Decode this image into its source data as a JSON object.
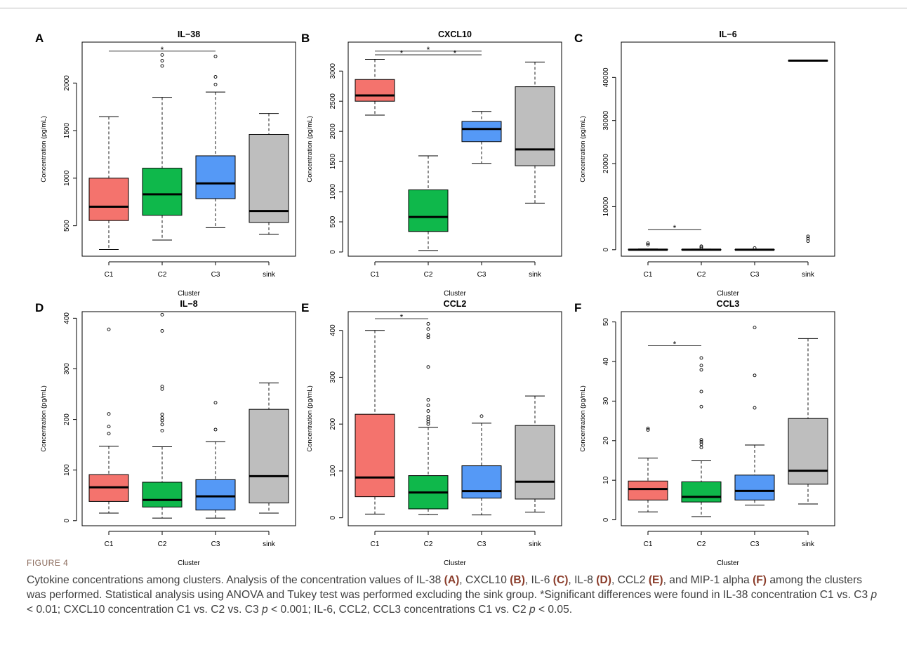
{
  "figure_label": "FIGURE 4",
  "caption": {
    "p1": "Cytokine concentrations among clusters. Analysis of the concentration values of IL-38 ",
    "b1": "(A)",
    "p2": ", CXCL10 ",
    "b2": "(B)",
    "p3": ", IL-6 ",
    "b3": "(C)",
    "p4": ", IL-8 ",
    "b4": "(D)",
    "p5": ", CCL2 ",
    "b5": "(E)",
    "p6": ", and MIP-1 alpha ",
    "b6": "(F)",
    "p7": " among the clusters was performed. Statistical analysis using ANOVA and Tukey test was performed excluding the sink group. *Significant differences were found in IL-38 concentration C1 vs. C3 ",
    "p8": " < 0.01; CXCL10 concentration C1 vs. C2 vs. C3 ",
    "p9": " < 0.001; IL-6, CCL2, CCL3 concentrations C1 vs. C2 ",
    "p10": " < 0.05.",
    "pvar": "p"
  },
  "colors": {
    "C1": "#f4736d",
    "C2": "#0fb84b",
    "C3": "#5599f6",
    "sink": "#bebebe"
  },
  "chart_data": [
    {
      "type": "box",
      "panel": "A",
      "title": "IL−38",
      "xlabel": "Cluster",
      "ylabel": "Concentration (pg/mL)",
      "categories": [
        "C1",
        "C2",
        "C3",
        "sink"
      ],
      "ylim": [
        180,
        2430
      ],
      "yticks": [
        500,
        1000,
        1500,
        2000
      ],
      "ytick_labels": [
        "500",
        "1000",
        "1500",
        "2000"
      ],
      "boxes": [
        {
          "low": 250,
          "q1": 555,
          "median": 700,
          "q3": 1000,
          "high": 1645,
          "outliers": []
        },
        {
          "low": 350,
          "q1": 610,
          "median": 830,
          "q3": 1105,
          "high": 1850,
          "outliers": [
            2180,
            2235,
            2295
          ]
        },
        {
          "low": 480,
          "q1": 785,
          "median": 945,
          "q3": 1235,
          "high": 1905,
          "outliers": [
            1985,
            2065,
            2280
          ]
        },
        {
          "low": 410,
          "q1": 535,
          "median": 655,
          "q3": 1460,
          "high": 1680,
          "outliers": []
        }
      ],
      "significance": [
        {
          "from": 0,
          "to": 2,
          "y": 2335,
          "label": "*"
        }
      ]
    },
    {
      "type": "box",
      "panel": "B",
      "title": "CXCL10",
      "xlabel": "Cluster",
      "ylabel": "Concentration (pg/mL)",
      "categories": [
        "C1",
        "C2",
        "C3",
        "sink"
      ],
      "ylim": [
        -70,
        3480
      ],
      "yticks": [
        0,
        500,
        1000,
        1500,
        2000,
        2500,
        3000
      ],
      "ytick_labels": [
        "0",
        "500",
        "1000",
        "1500",
        "2000",
        "2500",
        "3000"
      ],
      "boxes": [
        {
          "low": 2270,
          "q1": 2500,
          "median": 2595,
          "q3": 2860,
          "high": 3195,
          "outliers": []
        },
        {
          "low": 25,
          "q1": 340,
          "median": 580,
          "q3": 1030,
          "high": 1595,
          "outliers": []
        },
        {
          "low": 1470,
          "q1": 1830,
          "median": 2040,
          "q3": 2165,
          "high": 2330,
          "outliers": []
        },
        {
          "low": 810,
          "q1": 1430,
          "median": 1700,
          "q3": 2740,
          "high": 3150,
          "outliers": []
        }
      ],
      "significance": [
        {
          "from": 0,
          "to": 1,
          "y": 3270,
          "label": "*"
        },
        {
          "from": 0,
          "to": 2,
          "y": 3330,
          "label": "*"
        },
        {
          "from": 1,
          "to": 2,
          "y": 3270,
          "label": "*"
        }
      ]
    },
    {
      "type": "box",
      "panel": "C",
      "title": "IL−6",
      "xlabel": "Cluster",
      "ylabel": "Concentration (pg/mL)",
      "categories": [
        "C1",
        "C2",
        "C3",
        "sink"
      ],
      "ylim": [
        -1500,
        48200
      ],
      "yticks": [
        0,
        10000,
        20000,
        30000,
        40000
      ],
      "ytick_labels": [
        "0",
        "10000",
        "20000",
        "30000",
        "40000"
      ],
      "boxes": [
        {
          "low": 0,
          "q1": 0,
          "median": 0,
          "q3": 100,
          "high": 200,
          "outliers": [
            1200,
            1500
          ]
        },
        {
          "low": 0,
          "q1": 0,
          "median": 0,
          "q3": 50,
          "high": 150,
          "outliers": [
            500,
            800
          ]
        },
        {
          "low": 0,
          "q1": 0,
          "median": 0,
          "q3": 50,
          "high": 120,
          "outliers": [
            400
          ]
        },
        {
          "low": 43900,
          "q1": 43900,
          "median": 43900,
          "q3": 43900,
          "high": 43900,
          "outliers": [
            2000,
            2600,
            3100
          ]
        }
      ],
      "significance": [
        {
          "from": 0,
          "to": 1,
          "y": 4700,
          "label": "*"
        }
      ]
    },
    {
      "type": "box",
      "panel": "D",
      "title": "IL−8",
      "xlabel": "Cluster",
      "ylabel": "Concentration (pg/mL)",
      "categories": [
        "C1",
        "C2",
        "C3",
        "sink"
      ],
      "ylim": [
        -10,
        413
      ],
      "yticks": [
        0,
        100,
        200,
        300,
        400
      ],
      "ytick_labels": [
        "0",
        "100",
        "200",
        "300",
        "400"
      ],
      "boxes": [
        {
          "low": 15,
          "q1": 38,
          "median": 66,
          "q3": 91,
          "high": 147,
          "outliers": [
            172,
            186,
            211,
            378
          ]
        },
        {
          "low": 5,
          "q1": 27,
          "median": 41,
          "q3": 76,
          "high": 146,
          "outliers": [
            178,
            190,
            198,
            203,
            210,
            260,
            265,
            375,
            407
          ]
        },
        {
          "low": 5,
          "q1": 21,
          "median": 48,
          "q3": 81,
          "high": 156,
          "outliers": [
            180,
            233
          ]
        },
        {
          "low": 15,
          "q1": 35,
          "median": 88,
          "q3": 220,
          "high": 272,
          "outliers": []
        }
      ],
      "significance": []
    },
    {
      "type": "box",
      "panel": "E",
      "title": "CCL2",
      "xlabel": "Cluster",
      "ylabel": "Concentration (pg/mL)",
      "categories": [
        "C1",
        "C2",
        "C3",
        "sink"
      ],
      "ylim": [
        -17,
        440
      ],
      "yticks": [
        0,
        100,
        200,
        300,
        400
      ],
      "ytick_labels": [
        "0",
        "100",
        "200",
        "300",
        "400"
      ],
      "boxes": [
        {
          "low": 8,
          "q1": 45,
          "median": 86,
          "q3": 221,
          "high": 400,
          "outliers": []
        },
        {
          "low": 7,
          "q1": 19,
          "median": 54,
          "q3": 90,
          "high": 193,
          "outliers": [
            200,
            205,
            210,
            216,
            228,
            240,
            252,
            322,
            385,
            390,
            403,
            414
          ]
        },
        {
          "low": 6,
          "q1": 42,
          "median": 57,
          "q3": 111,
          "high": 202,
          "outliers": [
            217
          ]
        },
        {
          "low": 12,
          "q1": 40,
          "median": 77,
          "q3": 197,
          "high": 260,
          "outliers": []
        }
      ],
      "significance": [
        {
          "from": 0,
          "to": 1,
          "y": 425,
          "label": "*"
        }
      ]
    },
    {
      "type": "box",
      "panel": "F",
      "title": "CCL3",
      "xlabel": "Cluster",
      "ylabel": "Concentration (pg/mL)",
      "categories": [
        "C1",
        "C2",
        "C3",
        "sink"
      ],
      "ylim": [
        -1.5,
        52.6
      ],
      "yticks": [
        0,
        10,
        20,
        30,
        40,
        50
      ],
      "ytick_labels": [
        "0",
        "10",
        "20",
        "30",
        "40",
        "50"
      ],
      "boxes": [
        {
          "low": 2,
          "q1": 5,
          "median": 7.8,
          "q3": 9.8,
          "high": 15.6,
          "outliers": [
            22.7,
            23.1
          ]
        },
        {
          "low": 0.8,
          "q1": 4.5,
          "median": 5.8,
          "q3": 9.6,
          "high": 14.9,
          "outliers": [
            18.3,
            19.1,
            19.7,
            20.2,
            28.6,
            32.4,
            37.9,
            39.0,
            40.9
          ]
        },
        {
          "low": 3.7,
          "q1": 5.0,
          "median": 7.3,
          "q3": 11.3,
          "high": 18.9,
          "outliers": [
            28.3,
            36.5,
            48.6
          ]
        },
        {
          "low": 4.0,
          "q1": 9.0,
          "median": 12.4,
          "q3": 25.6,
          "high": 45.8,
          "outliers": []
        }
      ],
      "significance": [
        {
          "from": 0,
          "to": 1,
          "y": 44,
          "label": "*"
        }
      ]
    }
  ]
}
